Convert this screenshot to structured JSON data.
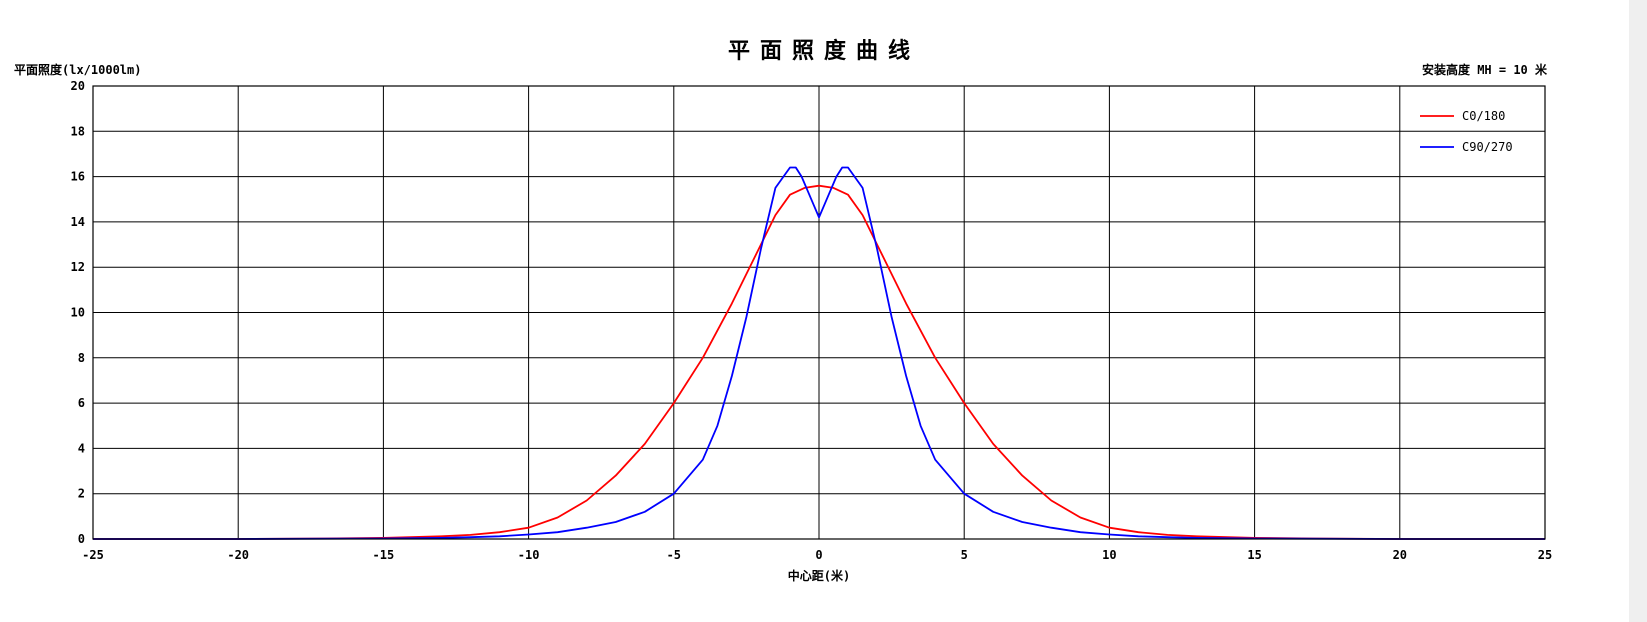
{
  "chart_data": {
    "type": "line",
    "title": "平面照度曲线",
    "ylabel": "平面照度(lx/1000lm)",
    "xlabel": "中心距(米)",
    "annotation": "安装高度 MH = 10 米",
    "xlim": [
      -25,
      25
    ],
    "ylim": [
      0,
      20
    ],
    "x_ticks": [
      -25,
      -20,
      -15,
      -10,
      -5,
      0,
      5,
      10,
      15,
      20,
      25
    ],
    "y_ticks": [
      0,
      2,
      4,
      6,
      8,
      10,
      12,
      14,
      16,
      18,
      20
    ],
    "grid": true,
    "legend_position": "top-right",
    "series": [
      {
        "name": "C0/180",
        "color": "#ff0000",
        "x": [
          -25,
          -20,
          -17,
          -15,
          -13,
          -12,
          -11,
          -10,
          -9,
          -8,
          -7,
          -6,
          -5,
          -4,
          -3,
          -2,
          -1.5,
          -1,
          -0.5,
          0,
          0.5,
          1,
          1.5,
          2,
          3,
          4,
          5,
          6,
          7,
          8,
          9,
          10,
          11,
          12,
          13,
          15,
          17,
          20,
          25
        ],
        "y": [
          0,
          0,
          0.02,
          0.05,
          0.12,
          0.18,
          0.3,
          0.5,
          0.95,
          1.7,
          2.8,
          4.2,
          6.0,
          8.0,
          10.4,
          13.0,
          14.3,
          15.2,
          15.5,
          15.6,
          15.5,
          15.2,
          14.3,
          13.0,
          10.4,
          8.0,
          6.0,
          4.2,
          2.8,
          1.7,
          0.95,
          0.5,
          0.3,
          0.18,
          0.12,
          0.05,
          0.02,
          0,
          0
        ]
      },
      {
        "name": "C90/270",
        "color": "#0000ff",
        "x": [
          -25,
          -20,
          -15,
          -13,
          -12,
          -11,
          -10,
          -9,
          -8,
          -7,
          -6,
          -5,
          -4,
          -3.5,
          -3,
          -2.5,
          -2,
          -1.5,
          -1,
          -0.8,
          -0.6,
          -0.4,
          -0.2,
          0,
          0.2,
          0.4,
          0.6,
          0.8,
          1,
          1.5,
          2,
          2.5,
          3,
          3.5,
          4,
          5,
          6,
          7,
          8,
          9,
          10,
          11,
          12,
          13,
          15,
          20,
          25
        ],
        "y": [
          0,
          0,
          0.02,
          0.05,
          0.08,
          0.12,
          0.2,
          0.3,
          0.5,
          0.75,
          1.2,
          2.0,
          3.5,
          5.0,
          7.2,
          9.8,
          12.8,
          15.5,
          16.4,
          16.4,
          16.0,
          15.4,
          14.8,
          14.2,
          14.8,
          15.4,
          16.0,
          16.4,
          16.4,
          15.5,
          12.8,
          9.8,
          7.2,
          5.0,
          3.5,
          2.0,
          1.2,
          0.75,
          0.5,
          0.3,
          0.2,
          0.12,
          0.08,
          0.05,
          0.02,
          0,
          0
        ]
      }
    ]
  }
}
